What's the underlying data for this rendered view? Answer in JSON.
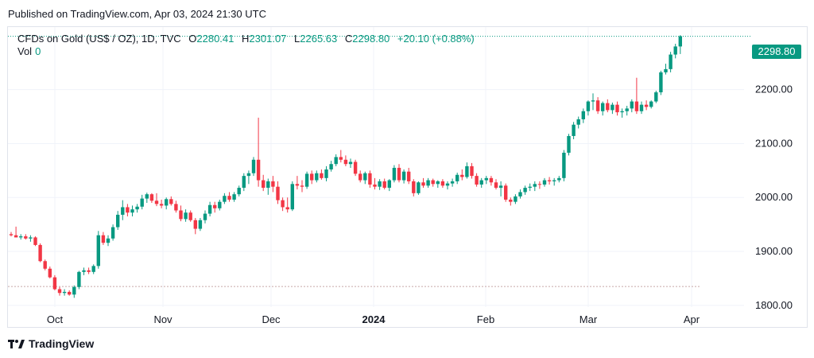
{
  "published": "Published on TradingView.com, Apr 03, 2024 21:30 UTC",
  "legend": {
    "symbol": "CFDs on Gold (US$ / OZ), 1D, TVC",
    "o_label": "O",
    "o_value": "2280.41",
    "h_label": "H",
    "h_value": "2301.07",
    "l_label": "L",
    "l_value": "2265.63",
    "c_label": "C",
    "c_value": "2298.80",
    "change": "+20.10 (+0.88%)",
    "vol_label": "Vol",
    "vol_value": "0"
  },
  "last_price_badge": "2298.80",
  "footer": {
    "brand": "TradingView"
  },
  "colors": {
    "up": "#089981",
    "down": "#f23645",
    "grid": "#f0f3fa",
    "text": "#131722"
  },
  "chart_data": {
    "type": "candlestick",
    "y_axis": {
      "ticks": [
        "1800.00",
        "1900.00",
        "2000.00",
        "2100.00",
        "2200.00"
      ],
      "ylim": [
        1757,
        2316
      ]
    },
    "x_axis": {
      "ticks": [
        "Oct",
        "Nov",
        "Dec",
        "2024",
        "Feb",
        "Mar",
        "Apr"
      ]
    },
    "last_price": 2298.8,
    "reference_line": 1835,
    "ohlc": [
      [
        1932,
        1936,
        1928,
        1930
      ],
      [
        1930,
        1946,
        1926,
        1926
      ],
      [
        1926,
        1932,
        1922,
        1928
      ],
      [
        1928,
        1932,
        1922,
        1924
      ],
      [
        1924,
        1930,
        1918,
        1926
      ],
      [
        1926,
        1928,
        1910,
        1912
      ],
      [
        1912,
        1915,
        1880,
        1882
      ],
      [
        1882,
        1885,
        1865,
        1868
      ],
      [
        1868,
        1872,
        1850,
        1852
      ],
      [
        1852,
        1856,
        1828,
        1830
      ],
      [
        1830,
        1834,
        1818,
        1823
      ],
      [
        1823,
        1830,
        1818,
        1825
      ],
      [
        1825,
        1828,
        1818,
        1820
      ],
      [
        1820,
        1837,
        1814,
        1834
      ],
      [
        1834,
        1864,
        1830,
        1862
      ],
      [
        1862,
        1870,
        1856,
        1865
      ],
      [
        1865,
        1870,
        1858,
        1862
      ],
      [
        1862,
        1876,
        1858,
        1873
      ],
      [
        1873,
        1938,
        1868,
        1930
      ],
      [
        1930,
        1936,
        1912,
        1916
      ],
      [
        1916,
        1930,
        1910,
        1924
      ],
      [
        1924,
        1950,
        1920,
        1945
      ],
      [
        1945,
        1975,
        1940,
        1968
      ],
      [
        1968,
        1995,
        1958,
        1982
      ],
      [
        1982,
        1988,
        1965,
        1972
      ],
      [
        1972,
        1985,
        1965,
        1978
      ],
      [
        1978,
        1988,
        1972,
        1983
      ],
      [
        1983,
        2005,
        1978,
        1998
      ],
      [
        1998,
        2009,
        1990,
        2006
      ],
      [
        2006,
        2008,
        1990,
        1994
      ],
      [
        1994,
        2008,
        1984,
        1988
      ],
      [
        1988,
        1996,
        1980,
        1985
      ],
      [
        1985,
        2000,
        1978,
        1997
      ],
      [
        1997,
        2002,
        1985,
        1988
      ],
      [
        1988,
        1994,
        1972,
        1976
      ],
      [
        1976,
        1985,
        1956,
        1960
      ],
      [
        1960,
        1978,
        1955,
        1972
      ],
      [
        1972,
        1976,
        1955,
        1958
      ],
      [
        1958,
        1962,
        1932,
        1942
      ],
      [
        1942,
        1962,
        1938,
        1958
      ],
      [
        1958,
        1976,
        1952,
        1970
      ],
      [
        1970,
        1992,
        1965,
        1986
      ],
      [
        1986,
        1992,
        1972,
        1980
      ],
      [
        1980,
        1996,
        1976,
        1992
      ],
      [
        1992,
        2008,
        1988,
        2003
      ],
      [
        2003,
        2010,
        1992,
        1996
      ],
      [
        1996,
        2010,
        1992,
        2006
      ],
      [
        2006,
        2022,
        2002,
        2018
      ],
      [
        2018,
        2045,
        2012,
        2040
      ],
      [
        2040,
        2050,
        2025,
        2045
      ],
      [
        2045,
        2075,
        2040,
        2070
      ],
      [
        2070,
        2148,
        2020,
        2032
      ],
      [
        2032,
        2042,
        2012,
        2018
      ],
      [
        2018,
        2035,
        2005,
        2030
      ],
      [
        2030,
        2040,
        2010,
        2020
      ],
      [
        2020,
        2030,
        1988,
        1995
      ],
      [
        1995,
        2000,
        1975,
        1982
      ],
      [
        1982,
        2000,
        1972,
        1978
      ],
      [
        1978,
        2030,
        1975,
        2025
      ],
      [
        2025,
        2040,
        2015,
        2022
      ],
      [
        2022,
        2032,
        2010,
        2020
      ],
      [
        2020,
        2048,
        2016,
        2044
      ],
      [
        2044,
        2050,
        2025,
        2032
      ],
      [
        2032,
        2050,
        2028,
        2045
      ],
      [
        2045,
        2052,
        2033,
        2036
      ],
      [
        2036,
        2058,
        2030,
        2052
      ],
      [
        2052,
        2068,
        2048,
        2062
      ],
      [
        2062,
        2080,
        2058,
        2075
      ],
      [
        2075,
        2088,
        2065,
        2070
      ],
      [
        2070,
        2078,
        2058,
        2062
      ],
      [
        2062,
        2072,
        2055,
        2066
      ],
      [
        2066,
        2070,
        2040,
        2044
      ],
      [
        2044,
        2050,
        2028,
        2032
      ],
      [
        2032,
        2048,
        2025,
        2045
      ],
      [
        2045,
        2050,
        2018,
        2024
      ],
      [
        2024,
        2036,
        2015,
        2020
      ],
      [
        2020,
        2034,
        2014,
        2030
      ],
      [
        2030,
        2035,
        2015,
        2018
      ],
      [
        2018,
        2034,
        2012,
        2032
      ],
      [
        2032,
        2060,
        2028,
        2055
      ],
      [
        2055,
        2062,
        2028,
        2032
      ],
      [
        2032,
        2052,
        2026,
        2048
      ],
      [
        2048,
        2055,
        2025,
        2030
      ],
      [
        2030,
        2034,
        2002,
        2008
      ],
      [
        2008,
        2030,
        2005,
        2028
      ],
      [
        2028,
        2036,
        2018,
        2022
      ],
      [
        2022,
        2036,
        2018,
        2032
      ],
      [
        2032,
        2035,
        2020,
        2025
      ],
      [
        2025,
        2032,
        2018,
        2030
      ],
      [
        2030,
        2034,
        2018,
        2022
      ],
      [
        2022,
        2030,
        2015,
        2026
      ],
      [
        2026,
        2035,
        2020,
        2030
      ],
      [
        2030,
        2046,
        2025,
        2042
      ],
      [
        2042,
        2052,
        2032,
        2038
      ],
      [
        2038,
        2065,
        2035,
        2058
      ],
      [
        2058,
        2064,
        2035,
        2040
      ],
      [
        2040,
        2045,
        2020,
        2024
      ],
      [
        2024,
        2036,
        2018,
        2032
      ],
      [
        2032,
        2040,
        2025,
        2036
      ],
      [
        2036,
        2040,
        2022,
        2028
      ],
      [
        2028,
        2034,
        2015,
        2018
      ],
      [
        2018,
        2030,
        2002,
        2022
      ],
      [
        2022,
        2026,
        1992,
        1996
      ],
      [
        1996,
        2000,
        1985,
        1992
      ],
      [
        1992,
        2006,
        1988,
        2002
      ],
      [
        2002,
        2015,
        1998,
        2010
      ],
      [
        2010,
        2022,
        2005,
        2018
      ],
      [
        2018,
        2026,
        2012,
        2020
      ],
      [
        2020,
        2030,
        2012,
        2025
      ],
      [
        2025,
        2030,
        2016,
        2024
      ],
      [
        2024,
        2036,
        2020,
        2032
      ],
      [
        2032,
        2038,
        2024,
        2030
      ],
      [
        2030,
        2036,
        2022,
        2032
      ],
      [
        2032,
        2040,
        2028,
        2036
      ],
      [
        2036,
        2088,
        2030,
        2083
      ],
      [
        2083,
        2118,
        2078,
        2114
      ],
      [
        2114,
        2140,
        2108,
        2135
      ],
      [
        2135,
        2150,
        2128,
        2145
      ],
      [
        2145,
        2165,
        2138,
        2160
      ],
      [
        2160,
        2180,
        2152,
        2178
      ],
      [
        2178,
        2193,
        2162,
        2180
      ],
      [
        2180,
        2186,
        2155,
        2160
      ],
      [
        2160,
        2178,
        2152,
        2175
      ],
      [
        2175,
        2182,
        2158,
        2162
      ],
      [
        2162,
        2176,
        2155,
        2172
      ],
      [
        2172,
        2178,
        2152,
        2158
      ],
      [
        2158,
        2165,
        2148,
        2160
      ],
      [
        2160,
        2170,
        2152,
        2165
      ],
      [
        2165,
        2182,
        2158,
        2178
      ],
      [
        2178,
        2222,
        2155,
        2160
      ],
      [
        2160,
        2178,
        2155,
        2172
      ],
      [
        2172,
        2180,
        2162,
        2168
      ],
      [
        2168,
        2180,
        2165,
        2178
      ],
      [
        2178,
        2198,
        2175,
        2195
      ],
      [
        2195,
        2235,
        2190,
        2232
      ],
      [
        2232,
        2248,
        2228,
        2238
      ],
      [
        2238,
        2270,
        2232,
        2265
      ],
      [
        2265,
        2285,
        2258,
        2280
      ],
      [
        2280,
        2301,
        2266,
        2299
      ]
    ]
  }
}
